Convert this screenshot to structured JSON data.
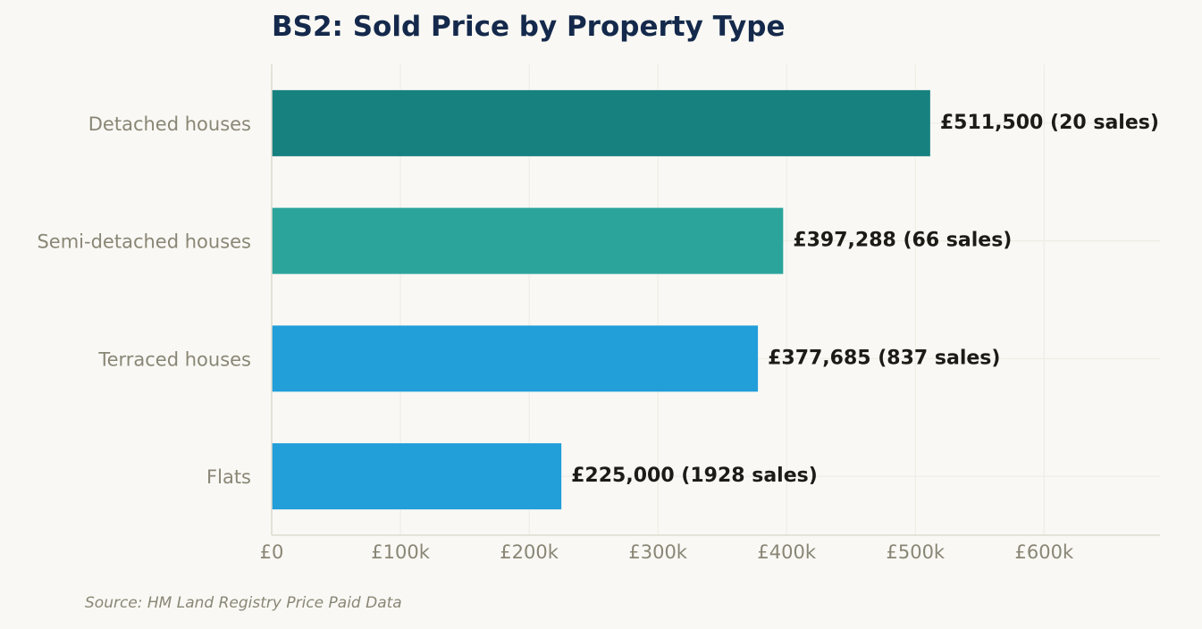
{
  "chart_data": {
    "type": "bar",
    "orientation": "horizontal",
    "title": "BS2: Sold Price by Property Type",
    "xlabel": "",
    "ylabel": "",
    "categories": [
      "Detached houses",
      "Semi-detached houses",
      "Terraced houses",
      "Flats"
    ],
    "values": [
      511500,
      397288,
      377685,
      225000
    ],
    "value_labels": [
      "£511,500  (20 sales)",
      "£397,288  (66 sales)",
      "£377,685  (837 sales)",
      "£225,000  (1928 sales)"
    ],
    "sales_counts": [
      20,
      66,
      837,
      1928
    ],
    "bar_colors": [
      "#178180",
      "#2ba59c",
      "#229ed9",
      "#229ed9"
    ],
    "xlim": [
      0,
      690000
    ],
    "x_ticks": [
      0,
      100000,
      200000,
      300000,
      400000,
      500000,
      600000
    ],
    "x_tick_labels": [
      "£0",
      "£100k",
      "£200k",
      "£300k",
      "£400k",
      "£500k",
      "£600k"
    ],
    "grid": true,
    "legend": "none"
  },
  "footer": {
    "source": "Source: HM Land Registry Price Paid Data"
  },
  "colors": {
    "background": "#f9f8f4",
    "title": "#14294b",
    "muted_text": "#8a8676",
    "value_text": "#1d1b16"
  }
}
